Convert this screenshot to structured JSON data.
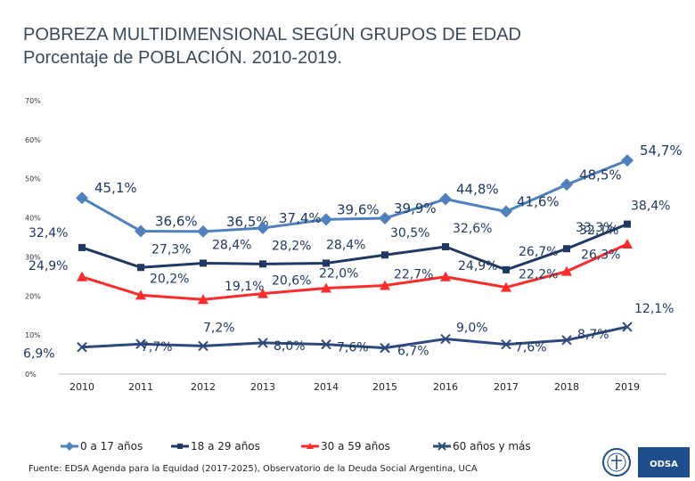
{
  "title_line1": "POBREZA MULTIDIMENSIONAL SEGÚN GRUPOS DE EDAD",
  "title_line2": "Porcentaje de POBLACIÓN. 2010-2019.",
  "source": "Fuente: EDSA Agenda para la Equidad (2017-2025), Observatorio de la Deuda Social Argentina, UCA",
  "logo_text": "ODSA",
  "chart_data": {
    "type": "line",
    "x": [
      "2010",
      "2011",
      "2012",
      "2013",
      "2014",
      "2015",
      "2016",
      "2017",
      "2018",
      "2019"
    ],
    "ylim": [
      0,
      70
    ],
    "yticks": [
      "0%",
      "10%",
      "20%",
      "30%",
      "40%",
      "50%",
      "60%",
      "70%"
    ],
    "grid": false,
    "legend_position": "bottom",
    "series": [
      {
        "name": "0 a 17 años",
        "color": "#4f81bd",
        "marker": "diamond",
        "values": [
          45.1,
          36.6,
          36.5,
          37.4,
          39.6,
          39.9,
          44.8,
          41.6,
          48.5,
          54.7
        ],
        "labels": [
          "45,1%",
          "36,6%",
          "36,5%",
          "37,4%",
          "39,6%",
          "39,9%",
          "44,8%",
          "41,6%",
          "48,5%",
          "54,7%"
        ]
      },
      {
        "name": "18 a 29 años",
        "color": "#1f3864",
        "marker": "square",
        "values": [
          32.4,
          27.3,
          28.4,
          28.2,
          28.4,
          30.5,
          32.6,
          26.7,
          32.1,
          38.4
        ],
        "labels": [
          "32,4%",
          "27,3%",
          "28,4%",
          "28,2%",
          "28,4%",
          "30,5%",
          "32,6%",
          "26,7%",
          "32,1%",
          "38,4%"
        ]
      },
      {
        "name": "30 a 59 años",
        "color": "#ff2b2b",
        "marker": "triangle",
        "values": [
          24.9,
          20.2,
          19.1,
          20.6,
          22.0,
          22.7,
          24.9,
          22.2,
          26.3,
          33.3
        ],
        "labels": [
          "24,9%",
          "20,2%",
          "19,1%",
          "20,6%",
          "22,0%",
          "22,7%",
          "24,9%",
          "22,2%",
          "26,3%",
          "33,3%"
        ]
      },
      {
        "name": "60 años y más",
        "color": "#2e4a7d",
        "marker": "x",
        "values": [
          6.9,
          7.7,
          7.2,
          8.0,
          7.6,
          6.7,
          9.0,
          7.6,
          8.7,
          12.1
        ],
        "labels": [
          "6,9%",
          "7,7%",
          "7,2%",
          "8,0%",
          "7,6%",
          "6,7%",
          "9,0%",
          "7,6%",
          "8,7%",
          "12,1%"
        ]
      }
    ]
  }
}
